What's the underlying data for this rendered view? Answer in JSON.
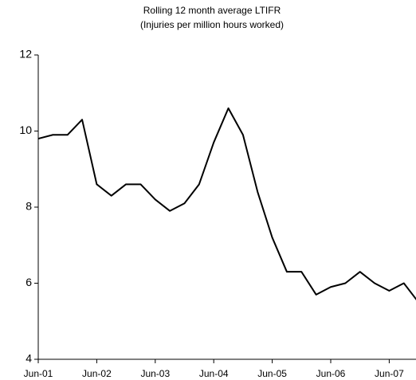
{
  "chart_data": {
    "type": "line",
    "title": "Rolling 12 month average LTIFR",
    "subtitle": "(Injuries per million hours worked)",
    "categories": [
      "Jun-01",
      null,
      null,
      null,
      "Jun-02",
      null,
      null,
      null,
      "Jun-03",
      null,
      null,
      null,
      "Jun-04",
      null,
      null,
      null,
      "Jun-05",
      null,
      null,
      null,
      "Jun-06",
      null,
      null,
      null,
      "Jun-07",
      null,
      null
    ],
    "series": [
      {
        "name": "LTIFR",
        "color": "#000000",
        "values": [
          9.8,
          9.9,
          9.9,
          10.3,
          8.6,
          8.3,
          8.6,
          8.6,
          8.2,
          7.9,
          8.1,
          8.6,
          9.7,
          10.6,
          9.9,
          8.4,
          7.2,
          6.3,
          6.3,
          5.7,
          5.9,
          6.0,
          6.3,
          6.0,
          5.8,
          6.0,
          5.5
        ]
      }
    ],
    "ylim": [
      4,
      12
    ],
    "yticks": [
      4,
      6,
      8,
      10,
      12
    ],
    "grid": false,
    "legend": false
  }
}
